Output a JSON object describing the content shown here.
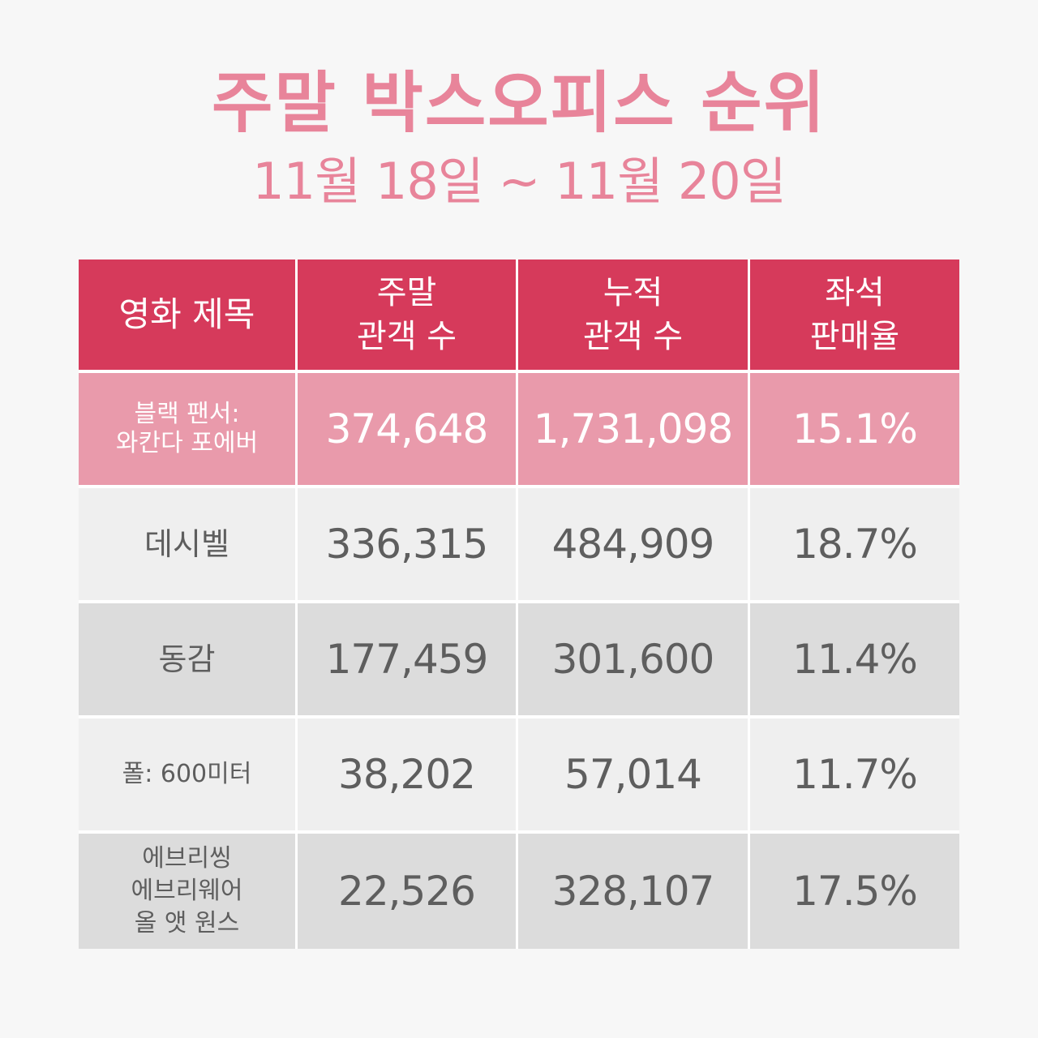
{
  "title": "주말 박스오피스 순위",
  "subtitle": "11월 18일 ~ 11월 20일",
  "colors": {
    "title": "#e8849a",
    "header_bg": "#d63a5b",
    "highlight_row_bg": "#e99aab",
    "row_light_bg": "#efefef",
    "row_dark_bg": "#dcdcdc",
    "text_gray": "#5e5e5e"
  },
  "chart_data": {
    "type": "table",
    "columns": [
      "영화 제목",
      "주말\n관객 수",
      "누적\n관객 수",
      "좌석\n판매율"
    ],
    "rows": [
      {
        "title": "블랙 팬서:\n와칸다 포에버",
        "weekend": "374,648",
        "cumulative": "1,731,098",
        "seat_rate": "15.1%"
      },
      {
        "title": "데시벨",
        "weekend": "336,315",
        "cumulative": "484,909",
        "seat_rate": "18.7%"
      },
      {
        "title": "동감",
        "weekend": "177,459",
        "cumulative": "301,600",
        "seat_rate": "11.4%"
      },
      {
        "title": "폴: 600미터",
        "weekend": "38,202",
        "cumulative": "57,014",
        "seat_rate": "11.7%"
      },
      {
        "title": "에브리씽\n에브리웨어\n올 앳 원스",
        "weekend": "22,526",
        "cumulative": "328,107",
        "seat_rate": "17.5%"
      }
    ]
  }
}
